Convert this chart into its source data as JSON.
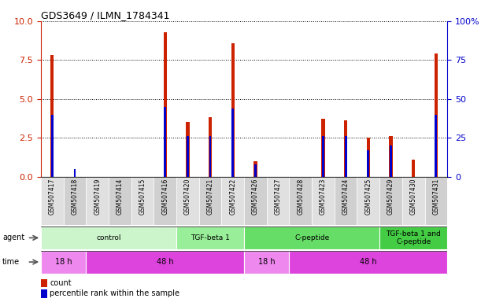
{
  "title": "GDS3649 / ILMN_1784341",
  "samples": [
    "GSM507417",
    "GSM507418",
    "GSM507419",
    "GSM507414",
    "GSM507415",
    "GSM507416",
    "GSM507420",
    "GSM507421",
    "GSM507422",
    "GSM507426",
    "GSM507427",
    "GSM507428",
    "GSM507423",
    "GSM507424",
    "GSM507425",
    "GSM507429",
    "GSM507430",
    "GSM507431"
  ],
  "count_values": [
    7.8,
    0.0,
    0.0,
    0.0,
    0.0,
    9.3,
    3.5,
    3.8,
    8.6,
    1.0,
    0.0,
    0.0,
    3.7,
    3.6,
    2.5,
    2.6,
    1.1,
    7.9
  ],
  "percentile_values_pct": [
    40,
    5,
    0,
    0,
    0,
    45,
    26,
    26,
    44,
    8,
    0,
    0,
    26,
    26,
    17,
    20,
    0,
    40
  ],
  "bar_color": "#cc2200",
  "pct_color": "#0000cc",
  "ylim_left": [
    0,
    10
  ],
  "ylim_right": [
    0,
    100
  ],
  "yticks_left": [
    0,
    2.5,
    5,
    7.5,
    10
  ],
  "yticks_right": [
    0,
    25,
    50,
    75,
    100
  ],
  "agent_groups": [
    {
      "label": "control",
      "start": 0,
      "end": 6,
      "color": "#ccf5cc"
    },
    {
      "label": "TGF-beta 1",
      "start": 6,
      "end": 9,
      "color": "#99ee99"
    },
    {
      "label": "C-peptide",
      "start": 9,
      "end": 15,
      "color": "#66dd66"
    },
    {
      "label": "TGF-beta 1 and\nC-peptide",
      "start": 15,
      "end": 18,
      "color": "#44cc44"
    }
  ],
  "time_groups": [
    {
      "label": "18 h",
      "start": 0,
      "end": 2,
      "color": "#ee88ee"
    },
    {
      "label": "48 h",
      "start": 2,
      "end": 9,
      "color": "#dd44dd"
    },
    {
      "label": "18 h",
      "start": 9,
      "end": 11,
      "color": "#ee88ee"
    },
    {
      "label": "48 h",
      "start": 11,
      "end": 18,
      "color": "#dd44dd"
    }
  ],
  "legend_count_color": "#cc2200",
  "legend_pct_color": "#0000cc",
  "grid_color": "#555555",
  "tick_label_color_left": "#cc2200",
  "tick_label_color_right": "#0000cc",
  "bg_color": "#ffffff",
  "plot_bg_color": "#ffffff",
  "bar_width": 0.15,
  "pct_bar_width": 0.1
}
